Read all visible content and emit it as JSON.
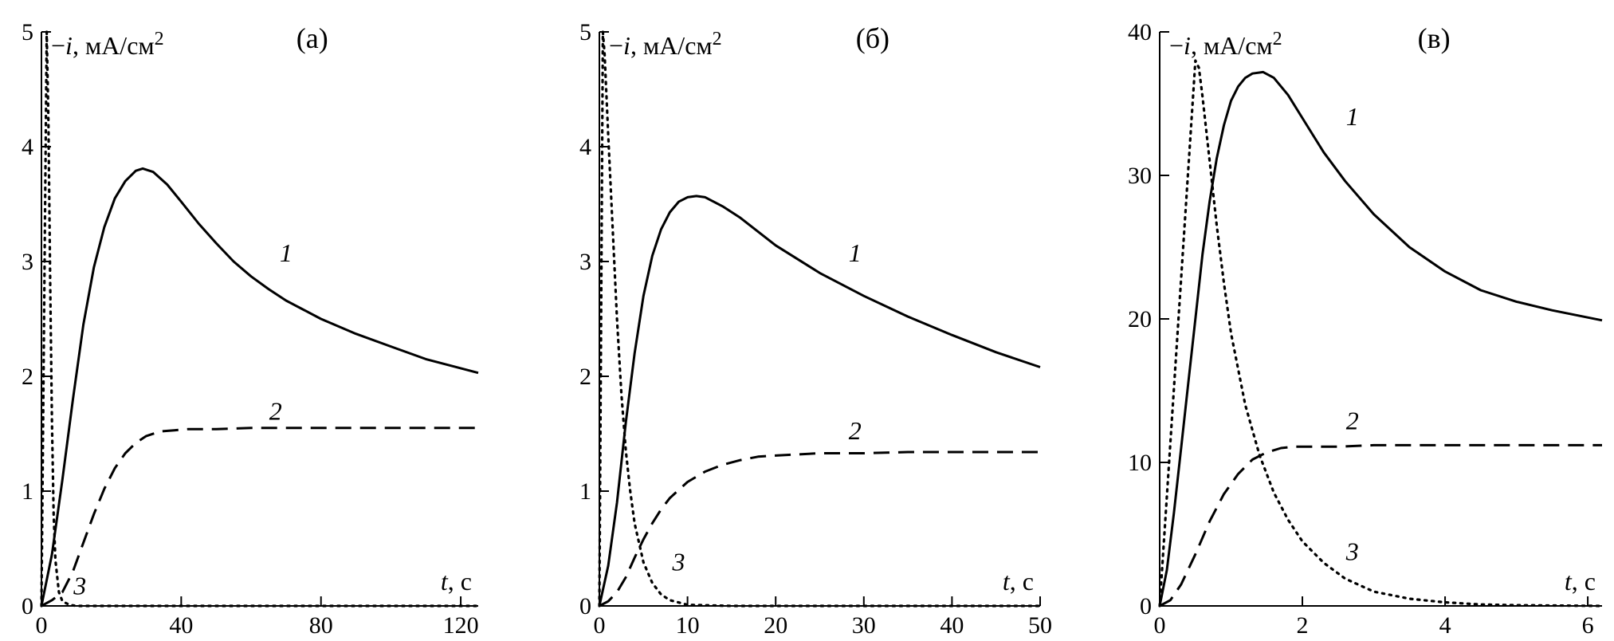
{
  "chart_data": [
    {
      "type": "line",
      "panel_label": "(а)",
      "ylabel": {
        "sign": "−",
        "var": "i",
        "unit": ", мА/см",
        "exp": "2"
      },
      "xlabel": {
        "var": "t",
        "unit": ", с"
      },
      "xlim": [
        0,
        125
      ],
      "ylim": [
        0,
        5
      ],
      "xticks": [
        0,
        40,
        80,
        120
      ],
      "yticks": [
        0,
        1,
        2,
        3,
        4,
        5
      ],
      "grid": false,
      "series": [
        {
          "name": "1",
          "style": "solid",
          "x": [
            0,
            3,
            6,
            9,
            12,
            15,
            18,
            21,
            24,
            27,
            29,
            32,
            36,
            40,
            45,
            50,
            55,
            60,
            65,
            70,
            80,
            90,
            100,
            110,
            120,
            125
          ],
          "y": [
            0,
            0.45,
            1.1,
            1.8,
            2.45,
            2.95,
            3.3,
            3.55,
            3.7,
            3.79,
            3.81,
            3.78,
            3.67,
            3.52,
            3.33,
            3.16,
            3.0,
            2.87,
            2.76,
            2.66,
            2.5,
            2.37,
            2.26,
            2.15,
            2.07,
            2.03
          ]
        },
        {
          "name": "2",
          "style": "dashed",
          "x": [
            0,
            3,
            6,
            9,
            12,
            15,
            18,
            21,
            24,
            27,
            30,
            34,
            38,
            42,
            50,
            60,
            80,
            100,
            125
          ],
          "y": [
            0,
            0.05,
            0.12,
            0.3,
            0.55,
            0.8,
            1.02,
            1.2,
            1.33,
            1.42,
            1.48,
            1.52,
            1.53,
            1.54,
            1.54,
            1.55,
            1.55,
            1.55,
            1.55
          ]
        },
        {
          "name": "3",
          "style": "dotted",
          "x": [
            0,
            1.5,
            2,
            2.5,
            3,
            3.5,
            4,
            5,
            6,
            8,
            10,
            20,
            40,
            80,
            125
          ],
          "y": [
            0,
            5.0,
            4.2,
            2.8,
            1.6,
            0.8,
            0.4,
            0.12,
            0.04,
            0.01,
            0,
            0,
            0,
            0,
            0
          ]
        }
      ],
      "annotations": [
        {
          "text": "1",
          "x": 70,
          "y": 3.0
        },
        {
          "text": "2",
          "x": 67,
          "y": 1.62
        },
        {
          "text": "3",
          "x": 11,
          "y": 0.1
        }
      ]
    },
    {
      "type": "line",
      "panel_label": "(б)",
      "ylabel": {
        "sign": "−",
        "var": "i",
        "unit": ", мА/см",
        "exp": "2"
      },
      "xlabel": {
        "var": "t",
        "unit": ", с"
      },
      "xlim": [
        0,
        50
      ],
      "ylim": [
        0,
        5
      ],
      "xticks": [
        0,
        10,
        20,
        30,
        40,
        50
      ],
      "yticks": [
        0,
        1,
        2,
        3,
        4,
        5
      ],
      "grid": false,
      "series": [
        {
          "name": "1",
          "style": "solid",
          "x": [
            0,
            1,
            2,
            3,
            4,
            5,
            6,
            7,
            8,
            9,
            10,
            11,
            12,
            14,
            16,
            18,
            20,
            25,
            30,
            35,
            40,
            45,
            50
          ],
          "y": [
            0,
            0.35,
            0.9,
            1.6,
            2.2,
            2.7,
            3.05,
            3.28,
            3.43,
            3.52,
            3.56,
            3.57,
            3.56,
            3.48,
            3.38,
            3.26,
            3.14,
            2.9,
            2.7,
            2.52,
            2.36,
            2.21,
            2.08
          ]
        },
        {
          "name": "2",
          "style": "dashed",
          "x": [
            0,
            1,
            2,
            3,
            4,
            5,
            6,
            7,
            8,
            10,
            12,
            14,
            16,
            18,
            20,
            25,
            30,
            35,
            40,
            50
          ],
          "y": [
            0,
            0.04,
            0.12,
            0.25,
            0.42,
            0.58,
            0.72,
            0.84,
            0.94,
            1.08,
            1.17,
            1.23,
            1.27,
            1.3,
            1.31,
            1.33,
            1.33,
            1.34,
            1.34,
            1.34
          ]
        },
        {
          "name": "3",
          "style": "dotted",
          "x": [
            0,
            0.4,
            0.6,
            1.0,
            1.5,
            2.0,
            2.5,
            3.0,
            3.5,
            4.0,
            5.0,
            6.0,
            7.0,
            8.0,
            10,
            15,
            20,
            30,
            50
          ],
          "y": [
            0,
            5.0,
            4.8,
            4.1,
            3.3,
            2.5,
            1.85,
            1.35,
            1.0,
            0.72,
            0.38,
            0.2,
            0.1,
            0.05,
            0.01,
            0,
            0,
            0,
            0
          ]
        }
      ],
      "annotations": [
        {
          "text": "1",
          "x": 29,
          "y": 3.0
        },
        {
          "text": "2",
          "x": 29,
          "y": 1.45
        },
        {
          "text": "3",
          "x": 9,
          "y": 0.31
        }
      ]
    },
    {
      "type": "line",
      "panel_label": "(в)",
      "ylabel": {
        "sign": "−",
        "var": "i",
        "unit": ", мА/см",
        "exp": "2"
      },
      "xlabel": {
        "var": "t",
        "unit": ", с"
      },
      "xlim": [
        0,
        6.2
      ],
      "ylim": [
        0,
        40
      ],
      "xticks": [
        0,
        2,
        4,
        6
      ],
      "yticks": [
        0,
        10,
        20,
        30,
        40
      ],
      "grid": false,
      "series": [
        {
          "name": "1",
          "style": "solid",
          "x": [
            0,
            0.1,
            0.2,
            0.3,
            0.4,
            0.5,
            0.6,
            0.7,
            0.8,
            0.9,
            1.0,
            1.1,
            1.2,
            1.3,
            1.45,
            1.6,
            1.8,
            2.0,
            2.3,
            2.6,
            3.0,
            3.5,
            4.0,
            4.5,
            5.0,
            5.5,
            6.2
          ],
          "y": [
            0,
            2.5,
            6.5,
            11,
            15.5,
            20,
            24.5,
            28.2,
            31.2,
            33.5,
            35.2,
            36.2,
            36.8,
            37.1,
            37.2,
            36.8,
            35.6,
            34.0,
            31.6,
            29.6,
            27.3,
            25.0,
            23.3,
            22.0,
            21.2,
            20.6,
            19.9
          ]
        },
        {
          "name": "2",
          "style": "dashed",
          "x": [
            0,
            0.15,
            0.3,
            0.5,
            0.7,
            0.9,
            1.1,
            1.3,
            1.5,
            1.7,
            1.9,
            2.2,
            2.5,
            3.0,
            4.0,
            5.0,
            6.2
          ],
          "y": [
            0,
            0.4,
            1.5,
            3.6,
            5.9,
            7.8,
            9.2,
            10.2,
            10.7,
            11.0,
            11.1,
            11.1,
            11.1,
            11.2,
            11.2,
            11.2,
            11.2
          ]
        },
        {
          "name": "3",
          "style": "dotted",
          "x": [
            0,
            0.5,
            0.55,
            0.6,
            0.7,
            0.8,
            0.9,
            1.0,
            1.2,
            1.4,
            1.6,
            1.8,
            2.0,
            2.3,
            2.6,
            3.0,
            3.5,
            4.0,
            4.5,
            5.0,
            6.2
          ],
          "y": [
            0,
            38.0,
            37.5,
            35.5,
            31.0,
            26.5,
            22.5,
            19.0,
            14.0,
            10.5,
            7.9,
            6.0,
            4.5,
            3.0,
            1.9,
            1.0,
            0.5,
            0.25,
            0.1,
            0.05,
            0
          ]
        }
      ],
      "annotations": [
        {
          "text": "1",
          "x": 2.7,
          "y": 33.5
        },
        {
          "text": "2",
          "x": 2.7,
          "y": 12.3
        },
        {
          "text": "3",
          "x": 2.7,
          "y": 3.2
        }
      ]
    }
  ]
}
